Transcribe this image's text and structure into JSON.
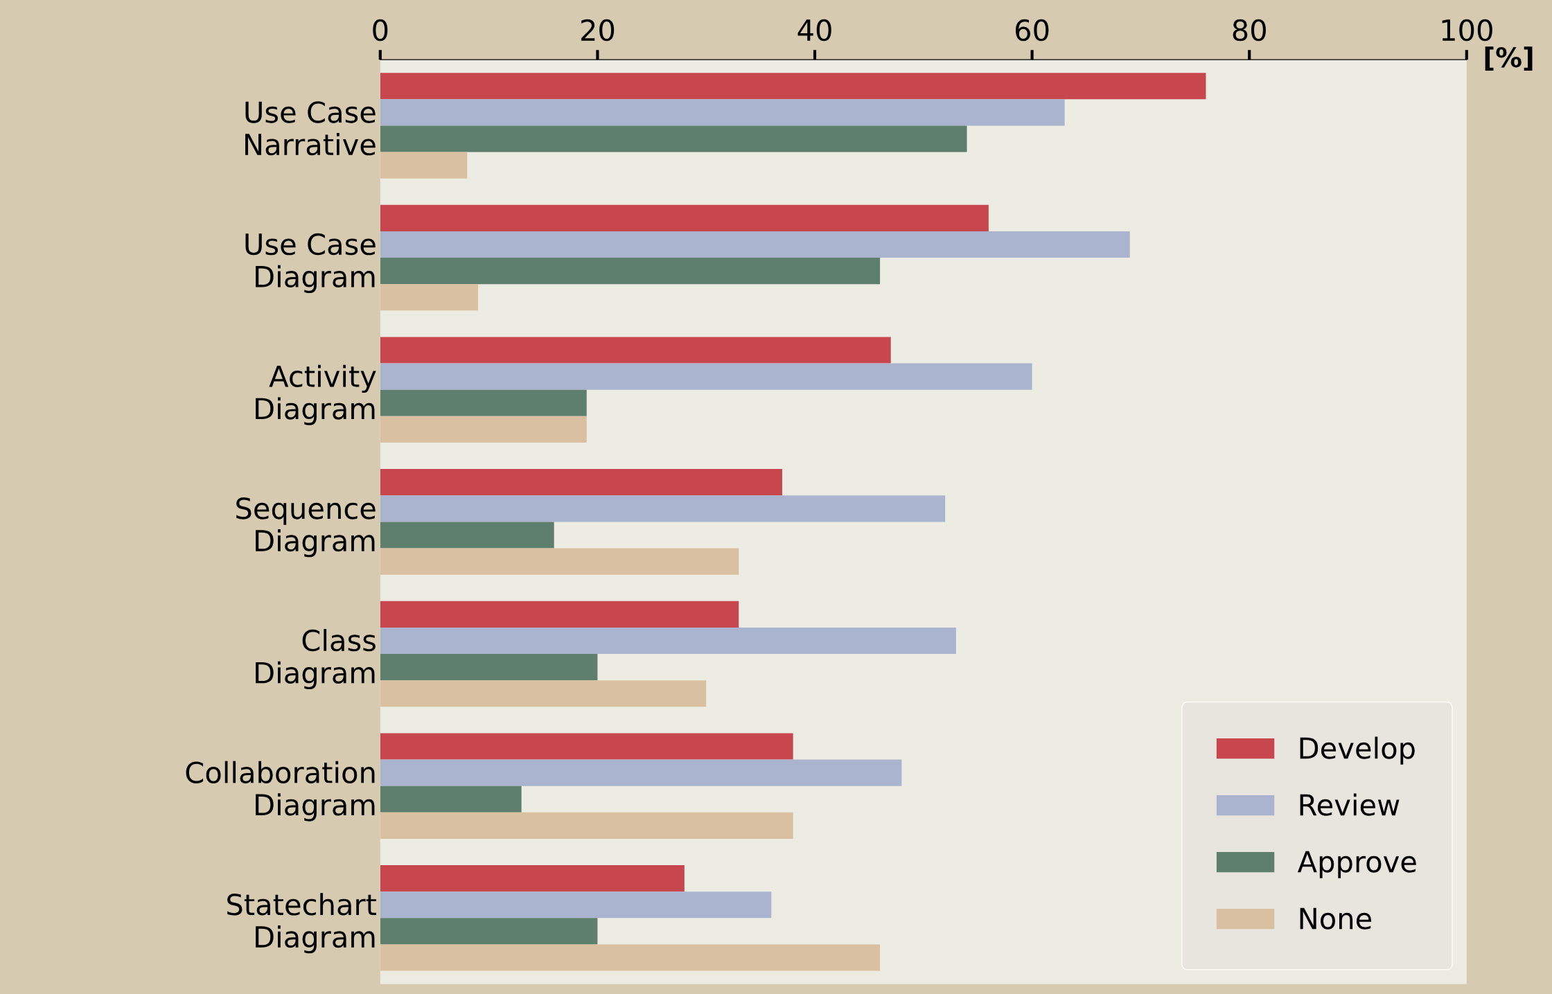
{
  "chart_data": {
    "type": "bar",
    "orientation": "horizontal",
    "xlabel": "[%]",
    "categories": [
      "Use Case\nNarrative",
      "Use Case\nDiagram",
      "Activity\nDiagram",
      "Sequence\nDiagram",
      "Class\nDiagram",
      "Collaboration\nDiagram",
      "Statechart\nDiagram"
    ],
    "series": [
      {
        "name": "Develop",
        "color": "#c8474f",
        "values": [
          76,
          56,
          47,
          37,
          33,
          38,
          28
        ]
      },
      {
        "name": "Review",
        "color": "#aab4cf",
        "values": [
          63,
          69,
          60,
          52,
          53,
          48,
          36
        ]
      },
      {
        "name": "Approve",
        "color": "#5e7f6e",
        "values": [
          54,
          46,
          19,
          16,
          20,
          13,
          20
        ]
      },
      {
        "name": "None",
        "color": "#d8c0a0",
        "values": [
          8,
          9,
          19,
          33,
          30,
          38,
          46
        ]
      }
    ],
    "xlim": [
      0,
      100
    ],
    "xticks": [
      0,
      20,
      40,
      60,
      80,
      100
    ],
    "grid": false,
    "legend": "bottom right"
  }
}
